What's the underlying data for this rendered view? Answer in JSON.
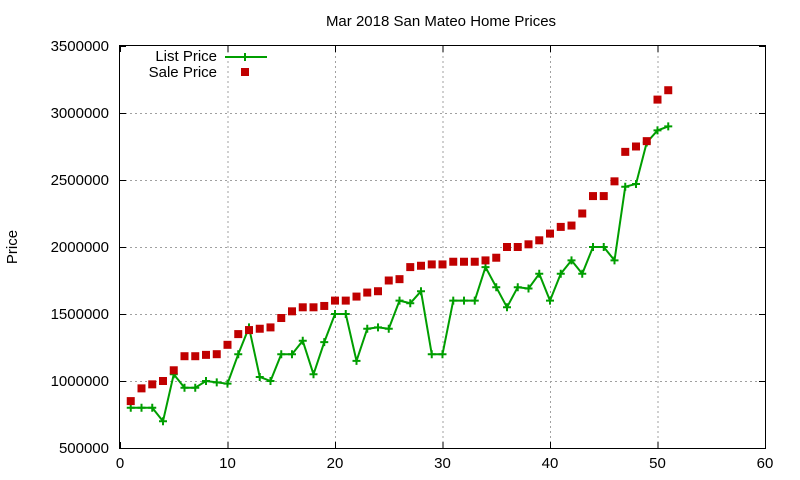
{
  "chart_data": {
    "type": "line",
    "title": "Mar 2018 San Mateo Home Prices",
    "xlabel": "",
    "ylabel": "Price",
    "xlim": [
      0,
      60
    ],
    "ylim": [
      500000,
      3500000
    ],
    "xticks": [
      0,
      10,
      20,
      30,
      40,
      50,
      60
    ],
    "yticks": [
      500000,
      1000000,
      1500000,
      2000000,
      2500000,
      3000000,
      3500000
    ],
    "grid": true,
    "legend_position": "top-left",
    "series": [
      {
        "name": "List Price",
        "style": "line-plus-markers",
        "color": "#009e00",
        "x": [
          1,
          2,
          3,
          4,
          5,
          6,
          7,
          8,
          9,
          10,
          11,
          12,
          13,
          14,
          15,
          16,
          17,
          18,
          19,
          20,
          21,
          22,
          23,
          24,
          25,
          26,
          27,
          28,
          29,
          30,
          31,
          32,
          33,
          34,
          35,
          36,
          37,
          38,
          39,
          40,
          41,
          42,
          43,
          44,
          45,
          46,
          47,
          48,
          49,
          50,
          51
        ],
        "y": [
          800000,
          800000,
          800000,
          700000,
          1050000,
          950000,
          950000,
          1000000,
          990000,
          980000,
          1200000,
          1400000,
          1030000,
          1000000,
          1200000,
          1200000,
          1300000,
          1050000,
          1290000,
          1500000,
          1500000,
          1150000,
          1390000,
          1400000,
          1390000,
          1600000,
          1580000,
          1670000,
          1200000,
          1200000,
          1600000,
          1600000,
          1600000,
          1850000,
          1700000,
          1550000,
          1700000,
          1690000,
          1800000,
          1600000,
          1800000,
          1900000,
          1800000,
          2000000,
          2000000,
          1900000,
          2450000,
          2470000,
          2780000,
          2870000,
          2900000
        ]
      },
      {
        "name": "Sale Price",
        "style": "square-markers",
        "color": "#c00000",
        "x": [
          1,
          2,
          3,
          4,
          5,
          6,
          7,
          8,
          9,
          10,
          11,
          12,
          13,
          14,
          15,
          16,
          17,
          18,
          19,
          20,
          21,
          22,
          23,
          24,
          25,
          26,
          27,
          28,
          29,
          30,
          31,
          32,
          33,
          34,
          35,
          36,
          37,
          38,
          39,
          40,
          41,
          42,
          43,
          44,
          45,
          46,
          47,
          48,
          49,
          50,
          51
        ],
        "y": [
          850000,
          945000,
          975000,
          1000000,
          1080000,
          1185000,
          1185000,
          1195000,
          1200000,
          1270000,
          1350000,
          1380000,
          1390000,
          1400000,
          1470000,
          1520000,
          1550000,
          1550000,
          1560000,
          1600000,
          1600000,
          1630000,
          1660000,
          1670000,
          1750000,
          1760000,
          1850000,
          1860000,
          1870000,
          1870000,
          1890000,
          1890000,
          1890000,
          1900000,
          1920000,
          2000000,
          2000000,
          2020000,
          2050000,
          2100000,
          2150000,
          2160000,
          2250000,
          2380000,
          2380000,
          2490000,
          2710000,
          2750000,
          2790000,
          3100000,
          3170000
        ]
      }
    ]
  }
}
